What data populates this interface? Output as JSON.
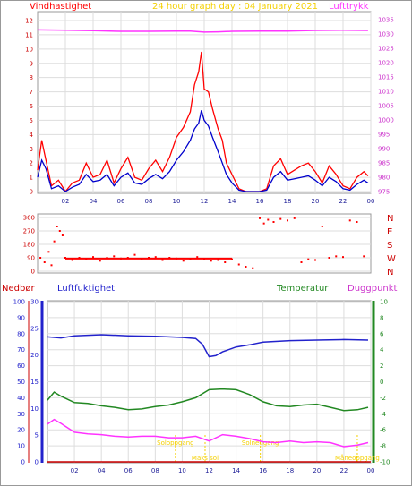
{
  "header": {
    "left_title": "Vindhastighet",
    "center_title": "24 hour graph day : 04 January 2021",
    "right_title": "Lufttrykk"
  },
  "bottom_labels": {
    "nedbor": "Nedbør",
    "luftfuktighet": "Luftfuktighet",
    "temperatur": "Temperatur",
    "duggpunkt": "Duggpunkt"
  },
  "colors": {
    "wind": "#ff0000",
    "wind_avg": "#0000cc",
    "pressure": "#ff33ff",
    "humidity": "#2222cc",
    "temperature": "#228822",
    "dewpoint": "#ff33ff",
    "rain": "#cc0000",
    "event": "#f4d000"
  },
  "chart_data": [
    {
      "type": "line",
      "id": "wind-pressure",
      "x_ticks": [
        "02",
        "04",
        "06",
        "08",
        "10",
        "12",
        "14",
        "16",
        "18",
        "20",
        "22",
        "00"
      ],
      "xlim": [
        0,
        24
      ],
      "ylim": [
        0,
        12
      ],
      "y_ticks": [
        "0",
        "1",
        "2",
        "3",
        "4",
        "5",
        "6",
        "7",
        "8",
        "9",
        "10",
        "11",
        "12"
      ],
      "y2lim": [
        975,
        1036
      ],
      "y2_ticks": [
        "975",
        "980",
        "985",
        "990",
        "995",
        "1000",
        "1005",
        "1010",
        "1015",
        "1020",
        "1025",
        "1030",
        "1035"
      ],
      "wind_gust": [
        [
          0,
          1.5
        ],
        [
          0.3,
          3.6
        ],
        [
          0.6,
          2.2
        ],
        [
          1,
          0.4
        ],
        [
          1.5,
          0.8
        ],
        [
          2,
          0
        ],
        [
          2.5,
          0.6
        ],
        [
          3,
          0.8
        ],
        [
          3.5,
          2.0
        ],
        [
          4,
          1.0
        ],
        [
          4.5,
          1.2
        ],
        [
          5,
          2.2
        ],
        [
          5.5,
          0.6
        ],
        [
          6,
          1.6
        ],
        [
          6.5,
          2.4
        ],
        [
          7,
          1.0
        ],
        [
          7.5,
          0.8
        ],
        [
          8,
          1.6
        ],
        [
          8.5,
          2.2
        ],
        [
          9,
          1.4
        ],
        [
          9.5,
          2.4
        ],
        [
          10,
          3.8
        ],
        [
          10.5,
          4.5
        ],
        [
          11,
          5.6
        ],
        [
          11.3,
          7.5
        ],
        [
          11.6,
          8.4
        ],
        [
          11.8,
          9.8
        ],
        [
          12,
          7.2
        ],
        [
          12.3,
          7.0
        ],
        [
          12.6,
          5.8
        ],
        [
          13,
          4.4
        ],
        [
          13.3,
          3.6
        ],
        [
          13.6,
          2.0
        ],
        [
          14,
          1.2
        ],
        [
          14.5,
          0.2
        ],
        [
          15,
          0
        ],
        [
          15.5,
          0
        ],
        [
          16,
          0
        ],
        [
          16.5,
          0.2
        ],
        [
          17,
          1.8
        ],
        [
          17.5,
          2.3
        ],
        [
          18,
          1.2
        ],
        [
          18.5,
          1.5
        ],
        [
          19,
          1.8
        ],
        [
          19.5,
          2.0
        ],
        [
          20,
          1.4
        ],
        [
          20.5,
          0.6
        ],
        [
          21,
          1.8
        ],
        [
          21.5,
          1.2
        ],
        [
          22,
          0.4
        ],
        [
          22.5,
          0.2
        ],
        [
          23,
          1.0
        ],
        [
          23.5,
          1.4
        ],
        [
          23.8,
          1.1
        ]
      ],
      "wind_avg": [
        [
          0,
          1.0
        ],
        [
          0.3,
          2.2
        ],
        [
          0.6,
          1.6
        ],
        [
          1,
          0.2
        ],
        [
          1.5,
          0.4
        ],
        [
          2,
          0
        ],
        [
          2.5,
          0.3
        ],
        [
          3,
          0.5
        ],
        [
          3.5,
          1.2
        ],
        [
          4,
          0.7
        ],
        [
          4.5,
          0.8
        ],
        [
          5,
          1.2
        ],
        [
          5.5,
          0.4
        ],
        [
          6,
          1.0
        ],
        [
          6.5,
          1.3
        ],
        [
          7,
          0.6
        ],
        [
          7.5,
          0.5
        ],
        [
          8,
          0.9
        ],
        [
          8.5,
          1.2
        ],
        [
          9,
          0.9
        ],
        [
          9.5,
          1.4
        ],
        [
          10,
          2.2
        ],
        [
          10.5,
          2.8
        ],
        [
          11,
          3.6
        ],
        [
          11.3,
          4.4
        ],
        [
          11.6,
          4.8
        ],
        [
          11.8,
          5.7
        ],
        [
          12,
          5.0
        ],
        [
          12.3,
          4.6
        ],
        [
          12.6,
          3.8
        ],
        [
          13,
          2.8
        ],
        [
          13.3,
          2.0
        ],
        [
          13.6,
          1.2
        ],
        [
          14,
          0.6
        ],
        [
          14.5,
          0.1
        ],
        [
          15,
          0
        ],
        [
          15.5,
          0
        ],
        [
          16,
          0
        ],
        [
          16.5,
          0.1
        ],
        [
          17,
          1.0
        ],
        [
          17.5,
          1.4
        ],
        [
          18,
          0.8
        ],
        [
          18.5,
          0.9
        ],
        [
          19,
          1.0
        ],
        [
          19.5,
          1.1
        ],
        [
          20,
          0.8
        ],
        [
          20.5,
          0.4
        ],
        [
          21,
          1.0
        ],
        [
          21.5,
          0.7
        ],
        [
          22,
          0.2
        ],
        [
          22.5,
          0.1
        ],
        [
          23,
          0.5
        ],
        [
          23.5,
          0.8
        ],
        [
          23.8,
          0.6
        ]
      ],
      "pressure": [
        [
          0,
          1031.5
        ],
        [
          2,
          1031.4
        ],
        [
          4,
          1031.2
        ],
        [
          6,
          1031.0
        ],
        [
          8,
          1031.0
        ],
        [
          10,
          1031.1
        ],
        [
          11,
          1031.1
        ],
        [
          12,
          1030.7
        ],
        [
          13,
          1030.8
        ],
        [
          14,
          1031.0
        ],
        [
          16,
          1031.1
        ],
        [
          18,
          1031.1
        ],
        [
          20,
          1031.3
        ],
        [
          22,
          1031.4
        ],
        [
          23.8,
          1031.3
        ]
      ]
    },
    {
      "type": "scatter",
      "id": "wind-direction",
      "xlim": [
        0,
        24
      ],
      "ylim": [
        0,
        360
      ],
      "y_ticks": [
        "0",
        "90",
        "180",
        "270",
        "360"
      ],
      "compass_labels": [
        "N",
        "W",
        "S",
        "E",
        "N"
      ],
      "points": [
        [
          0.2,
          90
        ],
        [
          0.5,
          60
        ],
        [
          0.8,
          130
        ],
        [
          1.0,
          40
        ],
        [
          1.2,
          200
        ],
        [
          1.4,
          300
        ],
        [
          1.6,
          270
        ],
        [
          1.8,
          240
        ],
        [
          2.0,
          90
        ],
        [
          2.5,
          75
        ],
        [
          3.0,
          90
        ],
        [
          3.5,
          80
        ],
        [
          4.0,
          95
        ],
        [
          4.5,
          70
        ],
        [
          5.0,
          90
        ],
        [
          5.5,
          100
        ],
        [
          6.0,
          85
        ],
        [
          6.5,
          90
        ],
        [
          7.0,
          110
        ],
        [
          7.5,
          80
        ],
        [
          8.0,
          90
        ],
        [
          8.5,
          95
        ],
        [
          9.0,
          75
        ],
        [
          9.5,
          90
        ],
        [
          10.0,
          85
        ],
        [
          10.5,
          70
        ],
        [
          11.0,
          80
        ],
        [
          11.5,
          95
        ],
        [
          12.0,
          80
        ],
        [
          12.5,
          70
        ],
        [
          13.0,
          75
        ],
        [
          13.5,
          60
        ],
        [
          14.0,
          80
        ],
        [
          14.5,
          45
        ],
        [
          15.0,
          30
        ],
        [
          15.5,
          20
        ],
        [
          16.0,
          355
        ],
        [
          16.3,
          320
        ],
        [
          16.6,
          345
        ],
        [
          17.0,
          330
        ],
        [
          17.5,
          350
        ],
        [
          18.0,
          340
        ],
        [
          18.5,
          355
        ],
        [
          19.0,
          60
        ],
        [
          19.5,
          80
        ],
        [
          20.0,
          75
        ],
        [
          20.5,
          300
        ],
        [
          21.0,
          90
        ],
        [
          21.5,
          100
        ],
        [
          22.0,
          95
        ],
        [
          22.5,
          340
        ],
        [
          23.0,
          330
        ],
        [
          23.5,
          100
        ]
      ],
      "avg": [
        [
          2,
          85
        ],
        [
          14,
          85
        ]
      ]
    },
    {
      "type": "line",
      "id": "humidity-temperature",
      "xlim": [
        0,
        24
      ],
      "left_axis_1": {
        "ylim": [
          0,
          100
        ],
        "ticks": [
          "0",
          "10",
          "20",
          "30",
          "40",
          "50",
          "60",
          "70",
          "80",
          "90",
          "100"
        ]
      },
      "left_axis_2": {
        "ylim": [
          0,
          30
        ],
        "ticks": [
          "0",
          "5",
          "10",
          "15",
          "20",
          "25",
          "30"
        ]
      },
      "right_axis": {
        "ylim": [
          -10,
          10
        ],
        "ticks": [
          "-10",
          "-8",
          "-6",
          "-4",
          "-2",
          "0",
          "2",
          "4",
          "6",
          "8",
          "10"
        ]
      },
      "humidity": [
        [
          0,
          23.4
        ],
        [
          1,
          23.2
        ],
        [
          2,
          23.6
        ],
        [
          4,
          23.8
        ],
        [
          6,
          23.6
        ],
        [
          8,
          23.5
        ],
        [
          10,
          23.3
        ],
        [
          11,
          23.1
        ],
        [
          11.5,
          22.0
        ],
        [
          12,
          19.7
        ],
        [
          12.5,
          19.9
        ],
        [
          13,
          20.6
        ],
        [
          14,
          21.5
        ],
        [
          15,
          21.9
        ],
        [
          16,
          22.4
        ],
        [
          18,
          22.7
        ],
        [
          20,
          22.8
        ],
        [
          22,
          22.9
        ],
        [
          23.8,
          22.8
        ]
      ],
      "temperature": [
        [
          0,
          -2.3
        ],
        [
          0.5,
          -1.3
        ],
        [
          1,
          -1.8
        ],
        [
          2,
          -2.6
        ],
        [
          3,
          -2.7
        ],
        [
          4,
          -3.0
        ],
        [
          5,
          -3.2
        ],
        [
          6,
          -3.5
        ],
        [
          7,
          -3.4
        ],
        [
          8,
          -3.1
        ],
        [
          9,
          -2.9
        ],
        [
          10,
          -2.5
        ],
        [
          11,
          -2.0
        ],
        [
          12,
          -1.0
        ],
        [
          13,
          -0.9
        ],
        [
          14,
          -1.0
        ],
        [
          15,
          -1.6
        ],
        [
          16,
          -2.5
        ],
        [
          17,
          -3.0
        ],
        [
          18,
          -3.1
        ],
        [
          19,
          -2.9
        ],
        [
          20,
          -2.8
        ],
        [
          21,
          -3.2
        ],
        [
          22,
          -3.6
        ],
        [
          23,
          -3.5
        ],
        [
          23.8,
          -3.2
        ]
      ],
      "dewpoint": [
        [
          0,
          -5.3
        ],
        [
          0.5,
          -4.7
        ],
        [
          1,
          -5.2
        ],
        [
          2,
          -6.3
        ],
        [
          3,
          -6.5
        ],
        [
          4,
          -6.6
        ],
        [
          5,
          -6.8
        ],
        [
          6,
          -6.9
        ],
        [
          7,
          -6.8
        ],
        [
          8,
          -6.8
        ],
        [
          9,
          -7.0
        ],
        [
          10,
          -7.0
        ],
        [
          11,
          -6.8
        ],
        [
          12,
          -7.4
        ],
        [
          13,
          -6.6
        ],
        [
          14,
          -6.8
        ],
        [
          15,
          -7.1
        ],
        [
          16,
          -7.5
        ],
        [
          17,
          -7.6
        ],
        [
          18,
          -7.4
        ],
        [
          19,
          -7.6
        ],
        [
          20,
          -7.5
        ],
        [
          21,
          -7.6
        ],
        [
          22,
          -8.1
        ],
        [
          23,
          -7.9
        ],
        [
          23.8,
          -7.6
        ]
      ],
      "events": [
        {
          "x": 9.5,
          "label": "Soloppgang"
        },
        {
          "x": 11.7,
          "label": "Maks sol"
        },
        {
          "x": 15.8,
          "label": "Solnedgang"
        },
        {
          "x": 23.0,
          "label": "Måneoppgang"
        }
      ]
    }
  ]
}
